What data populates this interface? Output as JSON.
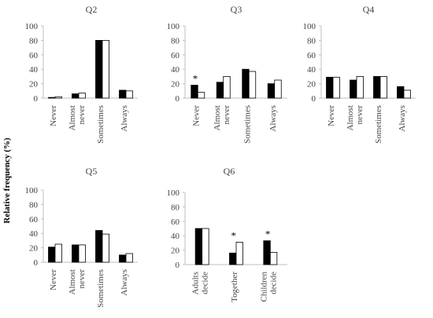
{
  "figure": {
    "ylabel": "Relative frequency (%)"
  },
  "colors": {
    "series_1": "#000000",
    "series_2": "#ffffff",
    "axis": "#bfbfbf",
    "text": "#444444"
  },
  "chart_data": [
    {
      "type": "bar",
      "title": "Q2",
      "categories": [
        "Never",
        "Almost never",
        "Sometimes",
        "Always"
      ],
      "series": [
        {
          "values": [
            1,
            6,
            80,
            11
          ]
        },
        {
          "values": [
            2,
            7,
            80,
            10
          ]
        }
      ],
      "ylim": [
        0,
        100
      ],
      "yticks": [
        "0",
        "20",
        "40",
        "60",
        "80",
        "100"
      ],
      "significant": [
        false,
        false,
        false,
        false
      ],
      "grid": false
    },
    {
      "type": "bar",
      "title": "Q3",
      "categories": [
        "Never",
        "Almost never",
        "Sometimes",
        "Always"
      ],
      "series": [
        {
          "values": [
            18,
            22,
            40,
            20
          ]
        },
        {
          "values": [
            8,
            30,
            37,
            25
          ]
        }
      ],
      "ylim": [
        0,
        100
      ],
      "yticks": [
        "0",
        "20",
        "40",
        "60",
        "80",
        "100"
      ],
      "significant": [
        true,
        false,
        false,
        false
      ],
      "grid": false
    },
    {
      "type": "bar",
      "title": "Q4",
      "categories": [
        "Never",
        "Almost never",
        "Sometimes",
        "Always"
      ],
      "series": [
        {
          "values": [
            29,
            25,
            30,
            16
          ]
        },
        {
          "values": [
            29,
            30,
            30,
            11
          ]
        }
      ],
      "ylim": [
        0,
        100
      ],
      "yticks": [
        "0",
        "20",
        "40",
        "60",
        "80",
        "100"
      ],
      "significant": [
        false,
        false,
        false,
        false
      ],
      "grid": false
    },
    {
      "type": "bar",
      "title": "Q5",
      "categories": [
        "Never",
        "Almost never",
        "Sometimes",
        "Always"
      ],
      "series": [
        {
          "values": [
            21,
            24,
            44,
            10
          ]
        },
        {
          "values": [
            25,
            24,
            39,
            12
          ]
        }
      ],
      "ylim": [
        0,
        100
      ],
      "yticks": [
        "0",
        "20",
        "40",
        "60",
        "80",
        "100"
      ],
      "significant": [
        false,
        false,
        false,
        false
      ],
      "grid": false
    },
    {
      "type": "bar",
      "title": "Q6",
      "categories": [
        "Adults decide",
        "Together",
        "Children decide"
      ],
      "series": [
        {
          "values": [
            50,
            16,
            33
          ]
        },
        {
          "values": [
            50,
            31,
            17
          ]
        }
      ],
      "ylim": [
        0,
        100
      ],
      "yticks": [
        "0",
        "20",
        "40",
        "60",
        "80",
        "100"
      ],
      "significant": [
        false,
        true,
        true
      ],
      "grid": false
    }
  ]
}
